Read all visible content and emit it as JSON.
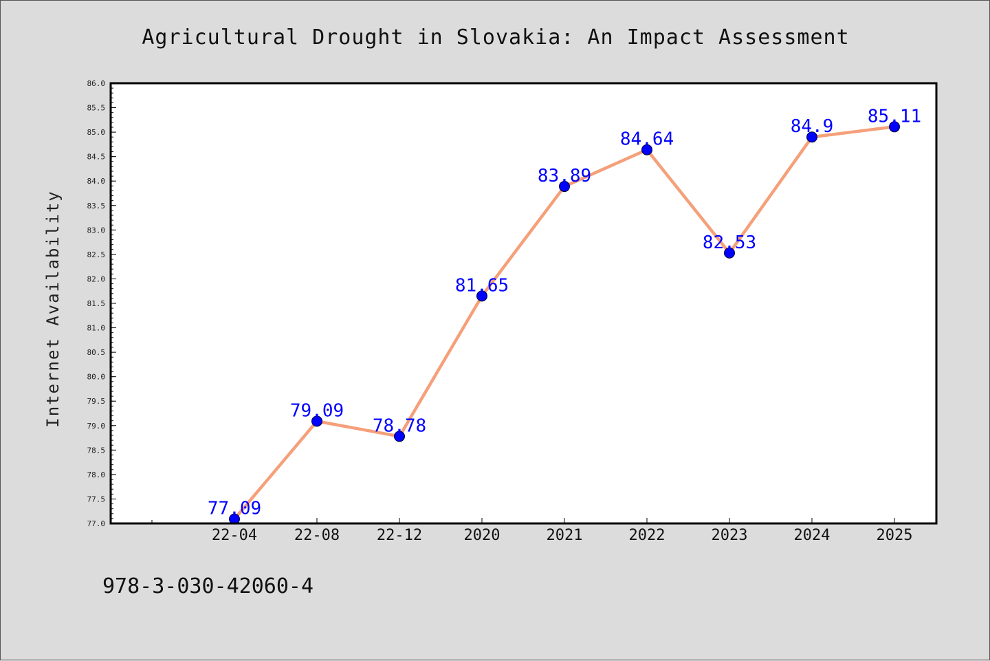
{
  "footnote": "978-3-030-42060-4",
  "colors": {
    "line": "#f5a07a",
    "marker": "#0000ff",
    "label": "#0000ff",
    "background": "#dcdcdc",
    "plot_background": "#ffffff"
  },
  "chart_data": {
    "type": "line",
    "title": "Agricultural Drought in Slovakia: An Impact Assessment",
    "xlabel": "",
    "ylabel": "Internet Availability",
    "categories": [
      "22-04",
      "22-08",
      "22-12",
      "2020",
      "2021",
      "2022",
      "2023",
      "2024",
      "2025"
    ],
    "series": [
      {
        "values": [
          77.09,
          79.09,
          78.78,
          81.65,
          83.89,
          84.64,
          82.53,
          84.9,
          85.11
        ]
      }
    ],
    "data_labels": [
      "77.09",
      "79.09",
      "78.78",
      "81.65",
      "83.89",
      "84.64",
      "82.53",
      "84.9",
      "85.11"
    ],
    "ylim": [
      77.0,
      86.0
    ],
    "yticks": [
      "77.0",
      "77.5",
      "78.0",
      "78.5",
      "79.0",
      "79.5",
      "80.0",
      "80.5",
      "81.0",
      "81.5",
      "82.0",
      "82.5",
      "83.0",
      "83.5",
      "84.0",
      "84.5",
      "85.0",
      "85.5",
      "86.0"
    ],
    "grid": false,
    "legend": "none"
  }
}
